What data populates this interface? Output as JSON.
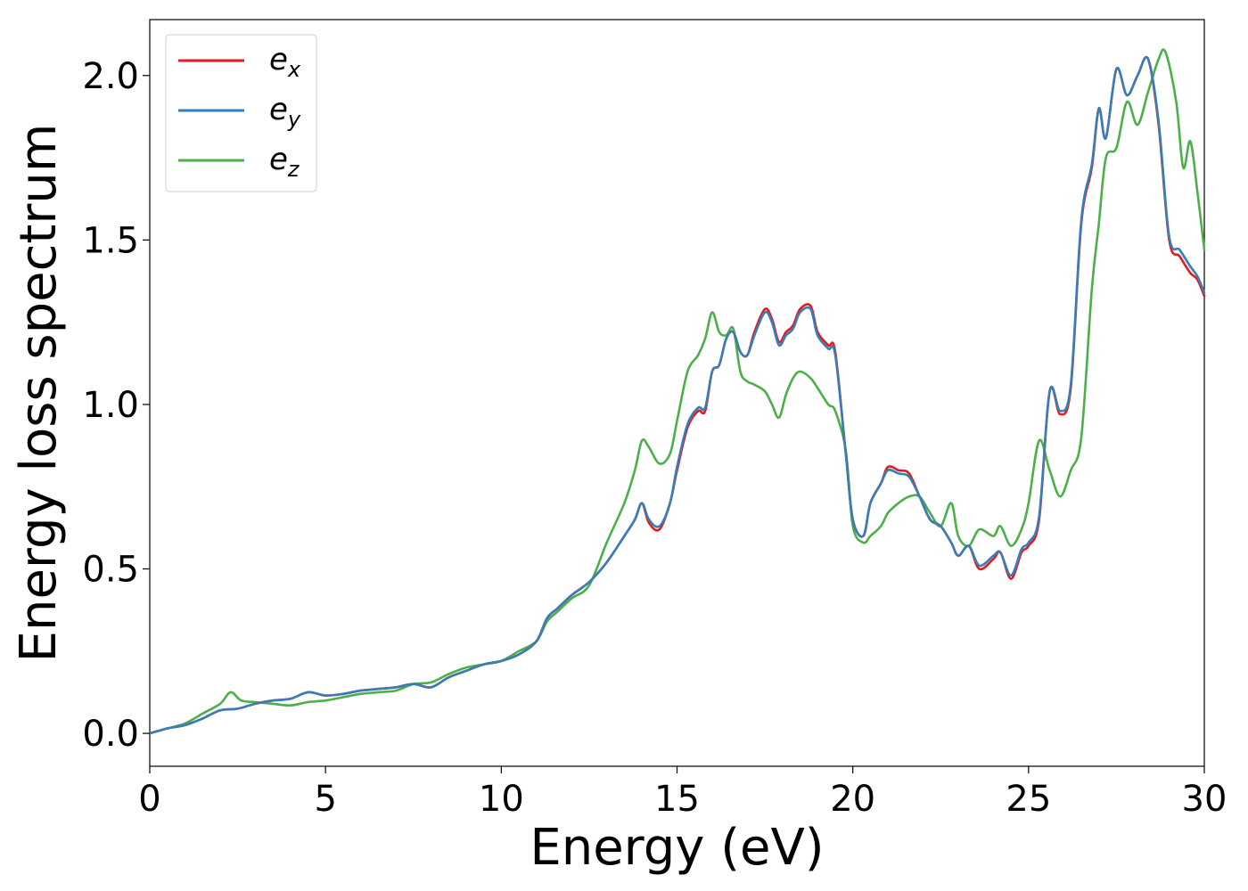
{
  "chart_data": {
    "type": "line",
    "title": "",
    "xlabel": "Energy (eV)",
    "ylabel": "Energy loss spectrum",
    "xlim": [
      0,
      30
    ],
    "ylim": [
      -0.1,
      2.17
    ],
    "xticks": [
      0,
      5,
      10,
      15,
      20,
      25,
      30
    ],
    "xtick_labels": [
      "0",
      "5",
      "10",
      "15",
      "20",
      "25",
      "30"
    ],
    "yticks": [
      0.0,
      0.5,
      1.0,
      1.5,
      2.0
    ],
    "ytick_labels": [
      "0.0",
      "0.5",
      "1.0",
      "1.5",
      "2.0"
    ],
    "grid": false,
    "legend_position": "top-left",
    "series": [
      {
        "name": "e_x",
        "legend_base": "e",
        "legend_sub": "x",
        "color": "#e41a1c",
        "x": [
          0,
          0.5,
          1,
          1.5,
          2,
          2.5,
          3,
          3.5,
          4,
          4.5,
          5,
          5.5,
          6,
          6.5,
          7,
          7.5,
          8,
          8.5,
          9,
          9.5,
          10,
          10.5,
          11,
          11.3,
          11.6,
          12,
          12.5,
          13,
          13.5,
          13.8,
          14,
          14.2,
          14.5,
          14.8,
          15,
          15.3,
          15.6,
          15.8,
          16,
          16.2,
          16.4,
          16.6,
          16.8,
          17,
          17.2,
          17.5,
          17.7,
          17.9,
          18.1,
          18.3,
          18.5,
          18.8,
          19,
          19.3,
          19.5,
          19.8,
          20,
          20.3,
          20.5,
          20.8,
          21,
          21.3,
          21.6,
          21.9,
          22.2,
          22.5,
          22.8,
          23,
          23.3,
          23.6,
          24,
          24.2,
          24.5,
          24.8,
          25,
          25.3,
          25.6,
          25.9,
          26.2,
          26.5,
          26.8,
          27,
          27.2,
          27.5,
          27.8,
          28.1,
          28.4,
          28.7,
          29,
          29.3,
          29.6,
          29.8,
          30
        ],
        "y": [
          0.0,
          0.015,
          0.025,
          0.045,
          0.07,
          0.075,
          0.09,
          0.1,
          0.105,
          0.125,
          0.115,
          0.12,
          0.13,
          0.135,
          0.14,
          0.15,
          0.14,
          0.17,
          0.19,
          0.21,
          0.22,
          0.24,
          0.28,
          0.35,
          0.38,
          0.42,
          0.46,
          0.52,
          0.6,
          0.65,
          0.7,
          0.64,
          0.62,
          0.7,
          0.8,
          0.93,
          0.98,
          0.98,
          1.1,
          1.12,
          1.2,
          1.22,
          1.16,
          1.15,
          1.22,
          1.29,
          1.26,
          1.19,
          1.22,
          1.24,
          1.29,
          1.3,
          1.22,
          1.18,
          1.16,
          0.85,
          0.65,
          0.6,
          0.7,
          0.76,
          0.81,
          0.8,
          0.79,
          0.72,
          0.65,
          0.63,
          0.58,
          0.54,
          0.57,
          0.5,
          0.53,
          0.55,
          0.47,
          0.55,
          0.57,
          0.65,
          1.04,
          0.97,
          1.05,
          1.55,
          1.72,
          1.9,
          1.81,
          2.02,
          1.94,
          2.0,
          2.05,
          1.85,
          1.5,
          1.45,
          1.4,
          1.38,
          1.33
        ]
      },
      {
        "name": "e_y",
        "legend_base": "e",
        "legend_sub": "y",
        "color": "#377eb8",
        "x": [
          0,
          0.5,
          1,
          1.5,
          2,
          2.5,
          3,
          3.5,
          4,
          4.5,
          5,
          5.5,
          6,
          6.5,
          7,
          7.5,
          8,
          8.5,
          9,
          9.5,
          10,
          10.5,
          11,
          11.3,
          11.6,
          12,
          12.5,
          13,
          13.5,
          13.8,
          14,
          14.2,
          14.5,
          14.8,
          15,
          15.3,
          15.6,
          15.8,
          16,
          16.2,
          16.4,
          16.6,
          16.8,
          17,
          17.2,
          17.5,
          17.7,
          17.9,
          18.1,
          18.3,
          18.5,
          18.8,
          19,
          19.3,
          19.5,
          19.8,
          20,
          20.3,
          20.5,
          20.8,
          21,
          21.3,
          21.6,
          21.9,
          22.2,
          22.5,
          22.8,
          23,
          23.3,
          23.6,
          24,
          24.2,
          24.5,
          24.8,
          25,
          25.3,
          25.6,
          25.9,
          26.2,
          26.5,
          26.8,
          27,
          27.2,
          27.5,
          27.8,
          28.1,
          28.4,
          28.7,
          29,
          29.3,
          29.6,
          29.8,
          30
        ],
        "y": [
          0.0,
          0.015,
          0.025,
          0.045,
          0.07,
          0.075,
          0.09,
          0.1,
          0.105,
          0.125,
          0.115,
          0.12,
          0.13,
          0.135,
          0.14,
          0.15,
          0.14,
          0.17,
          0.19,
          0.21,
          0.22,
          0.24,
          0.28,
          0.35,
          0.38,
          0.42,
          0.46,
          0.52,
          0.6,
          0.65,
          0.7,
          0.65,
          0.63,
          0.7,
          0.81,
          0.94,
          0.99,
          0.99,
          1.1,
          1.12,
          1.2,
          1.22,
          1.16,
          1.15,
          1.21,
          1.28,
          1.25,
          1.18,
          1.21,
          1.23,
          1.28,
          1.29,
          1.21,
          1.17,
          1.15,
          0.85,
          0.65,
          0.6,
          0.7,
          0.76,
          0.8,
          0.79,
          0.78,
          0.72,
          0.65,
          0.63,
          0.58,
          0.54,
          0.57,
          0.51,
          0.54,
          0.55,
          0.48,
          0.56,
          0.58,
          0.66,
          1.04,
          0.98,
          1.06,
          1.56,
          1.73,
          1.9,
          1.81,
          2.02,
          1.94,
          2.0,
          2.05,
          1.86,
          1.51,
          1.47,
          1.42,
          1.39,
          1.34
        ]
      },
      {
        "name": "e_z",
        "legend_base": "e",
        "legend_sub": "z",
        "color": "#4daf4a",
        "x": [
          0,
          0.5,
          1,
          1.5,
          2,
          2.3,
          2.6,
          3,
          3.5,
          4,
          4.5,
          5,
          5.5,
          6,
          6.5,
          7,
          7.5,
          8,
          8.5,
          9,
          9.5,
          10,
          10.5,
          11,
          11.3,
          11.6,
          12,
          12.5,
          13,
          13.5,
          13.8,
          14,
          14.2,
          14.5,
          14.8,
          15,
          15.3,
          15.6,
          15.8,
          16,
          16.2,
          16.4,
          16.6,
          16.8,
          17,
          17.2,
          17.5,
          17.7,
          17.9,
          18.1,
          18.3,
          18.5,
          18.8,
          19,
          19.3,
          19.5,
          19.8,
          20,
          20.3,
          20.5,
          20.8,
          21,
          21.3,
          21.6,
          21.9,
          22.2,
          22.5,
          22.8,
          23,
          23.3,
          23.6,
          24,
          24.2,
          24.5,
          24.8,
          25,
          25.3,
          25.6,
          25.9,
          26.2,
          26.5,
          26.8,
          27,
          27.2,
          27.5,
          27.8,
          28.1,
          28.4,
          28.7,
          28.9,
          29.2,
          29.4,
          29.6,
          29.8,
          30
        ],
        "y": [
          0.0,
          0.015,
          0.03,
          0.06,
          0.09,
          0.125,
          0.1,
          0.095,
          0.09,
          0.085,
          0.095,
          0.1,
          0.11,
          0.12,
          0.125,
          0.13,
          0.15,
          0.155,
          0.18,
          0.2,
          0.21,
          0.22,
          0.25,
          0.28,
          0.34,
          0.37,
          0.41,
          0.45,
          0.58,
          0.7,
          0.8,
          0.89,
          0.87,
          0.82,
          0.85,
          0.95,
          1.1,
          1.15,
          1.2,
          1.28,
          1.22,
          1.21,
          1.23,
          1.1,
          1.07,
          1.06,
          1.04,
          1.0,
          0.96,
          1.03,
          1.08,
          1.1,
          1.08,
          1.05,
          1.0,
          0.98,
          0.86,
          0.63,
          0.58,
          0.6,
          0.63,
          0.67,
          0.7,
          0.72,
          0.72,
          0.67,
          0.63,
          0.7,
          0.6,
          0.57,
          0.62,
          0.6,
          0.63,
          0.57,
          0.62,
          0.7,
          0.89,
          0.8,
          0.72,
          0.8,
          0.9,
          1.35,
          1.55,
          1.75,
          1.78,
          1.92,
          1.85,
          1.95,
          2.05,
          2.07,
          1.92,
          1.72,
          1.8,
          1.65,
          1.47
        ]
      }
    ]
  }
}
